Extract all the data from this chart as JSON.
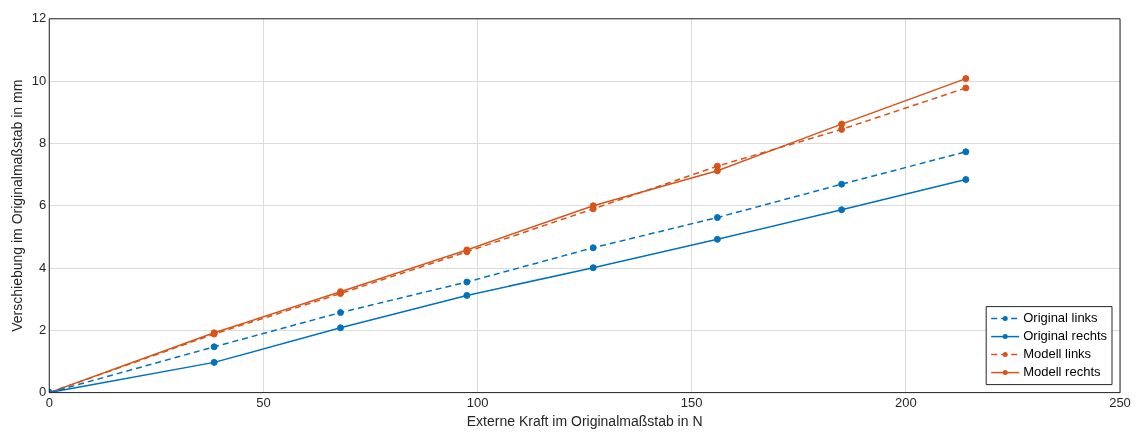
{
  "chart_data": {
    "type": "line",
    "xlabel": "Externe Kraft im Originalmaßstab in N",
    "ylabel": "Verschiebung im Originalmaßstab in mm",
    "x": [
      0,
      38.5,
      68,
      97.5,
      127,
      156,
      185,
      214
    ],
    "xlim": [
      0,
      250
    ],
    "xticks": [
      0,
      50,
      100,
      150,
      200,
      250
    ],
    "ylim": [
      0,
      12
    ],
    "yticks": [
      0,
      2,
      4,
      6,
      8,
      10,
      12
    ],
    "grid": true,
    "legend": "bottom right",
    "marker": "circle",
    "series": [
      {
        "name": "Original links",
        "color": "#0072bd",
        "line_style": "dashed",
        "values": [
          0,
          1.47,
          2.57,
          3.55,
          4.65,
          5.62,
          6.69,
          7.73
        ]
      },
      {
        "name": "Original rechts",
        "color": "#0072bd",
        "line_style": "solid",
        "values": [
          0,
          0.97,
          2.08,
          3.12,
          4.01,
          4.92,
          5.87,
          6.84
        ]
      },
      {
        "name": "Modell links",
        "color": "#d95319",
        "line_style": "dashed",
        "values": [
          0,
          1.88,
          3.18,
          4.52,
          5.9,
          7.27,
          8.45,
          9.78
        ]
      },
      {
        "name": "Modell rechts",
        "color": "#d95319",
        "line_style": "solid",
        "values": [
          0,
          1.92,
          3.24,
          4.58,
          6.0,
          7.12,
          8.62,
          10.08
        ]
      }
    ]
  }
}
